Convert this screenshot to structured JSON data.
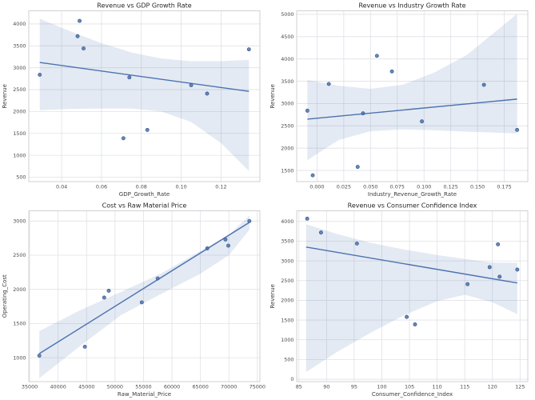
{
  "figure": {
    "background": "#ffffff",
    "grid_rows": 2,
    "grid_cols": 2
  },
  "style": {
    "accent": "#4c72b0",
    "point_fill": "#4c72b0",
    "point_edge": "#3a5a8c",
    "band_fill": "#4c72b0",
    "band_opacity": 0.15,
    "grid": "#e0e1e8",
    "spine": "#cccccc",
    "title_color": "#262626",
    "tick_color": "#4a4a4a",
    "label_color": "#3c3c3c"
  },
  "chart_data": [
    {
      "type": "scatter",
      "title": "Revenue vs GDP Growth Rate",
      "xlabel": "GDP_Growth_Rate",
      "ylabel": "Revenue",
      "xlim": [
        0.0235,
        0.1395
      ],
      "ylim": [
        400,
        4300
      ],
      "xticks": {
        "values": [
          0.04,
          0.06,
          0.08,
          0.1,
          0.12
        ],
        "labels": [
          "0.04",
          "0.06",
          "0.08",
          "0.10",
          "0.12"
        ]
      },
      "yticks": {
        "values": [
          500,
          1000,
          1500,
          2000,
          2500,
          3000,
          3500,
          4000
        ],
        "labels": [
          "500",
          "1000",
          "1500",
          "2000",
          "2500",
          "3000",
          "3500",
          "4000"
        ]
      },
      "points": [
        [
          0.029,
          2840
        ],
        [
          0.048,
          3720
        ],
        [
          0.049,
          4070
        ],
        [
          0.051,
          3440
        ],
        [
          0.071,
          1390
        ],
        [
          0.074,
          2780
        ],
        [
          0.083,
          1580
        ],
        [
          0.105,
          2600
        ],
        [
          0.113,
          2410
        ],
        [
          0.134,
          3420
        ]
      ],
      "regression": {
        "x": [
          0.029,
          0.134
        ],
        "y": [
          3120,
          2460
        ]
      },
      "band": {
        "x": [
          0.029,
          0.045,
          0.06,
          0.075,
          0.09,
          0.105,
          0.12,
          0.134
        ],
        "upper": [
          4120,
          3820,
          3560,
          3350,
          3210,
          3150,
          3150,
          3180
        ],
        "lower": [
          2030,
          2060,
          2070,
          2070,
          2000,
          1760,
          1280,
          640
        ]
      }
    },
    {
      "type": "scatter",
      "title": "Revenue vs Industry Growth Rate",
      "xlabel": "Industry_Revenue_Growth_Rate",
      "ylabel": "Revenue",
      "xlim": [
        -0.019,
        0.197
      ],
      "ylim": [
        1250,
        5080
      ],
      "xticks": {
        "values": [
          0.0,
          0.025,
          0.05,
          0.075,
          0.1,
          0.125,
          0.15,
          0.175
        ],
        "labels": [
          "0.000",
          "0.025",
          "0.050",
          "0.075",
          "0.100",
          "0.125",
          "0.150",
          "0.175"
        ]
      },
      "yticks": {
        "values": [
          1500,
          2000,
          2500,
          3000,
          3500,
          4000,
          4500,
          5000
        ],
        "labels": [
          "1500",
          "2000",
          "2500",
          "3000",
          "3500",
          "4000",
          "4500",
          "5000"
        ]
      },
      "points": [
        [
          -0.009,
          2840
        ],
        [
          -0.004,
          1390
        ],
        [
          0.011,
          3440
        ],
        [
          0.038,
          1580
        ],
        [
          0.043,
          2780
        ],
        [
          0.056,
          4070
        ],
        [
          0.07,
          3720
        ],
        [
          0.098,
          2600
        ],
        [
          0.156,
          3420
        ],
        [
          0.187,
          2410
        ]
      ],
      "regression": {
        "x": [
          -0.009,
          0.187
        ],
        "y": [
          2650,
          3100
        ]
      },
      "band": {
        "x": [
          -0.009,
          0.02,
          0.05,
          0.08,
          0.11,
          0.14,
          0.187
        ],
        "upper": [
          3530,
          3400,
          3330,
          3420,
          3700,
          4090,
          5010
        ],
        "lower": [
          1730,
          2180,
          2380,
          2420,
          2400,
          2370,
          2330
        ]
      }
    },
    {
      "type": "scatter",
      "title": "Cost vs Raw Material Price",
      "xlabel": "Raw_Material_Price",
      "ylabel": "Operating_Cost",
      "xlim": [
        34850,
        75450
      ],
      "ylim": [
        650,
        3150
      ],
      "xticks": {
        "values": [
          35000,
          40000,
          45000,
          50000,
          55000,
          60000,
          65000,
          70000,
          75000
        ],
        "labels": [
          "35000",
          "40000",
          "45000",
          "50000",
          "55000",
          "60000",
          "65000",
          "70000",
          "75000"
        ]
      },
      "yticks": {
        "values": [
          1000,
          1500,
          2000,
          2500,
          3000
        ],
        "labels": [
          "1000",
          "1500",
          "2000",
          "2500",
          "3000"
        ]
      },
      "points": [
        [
          36700,
          1030
        ],
        [
          44700,
          1160
        ],
        [
          48100,
          1880
        ],
        [
          48900,
          1980
        ],
        [
          54700,
          1810
        ],
        [
          57500,
          2160
        ],
        [
          66200,
          2600
        ],
        [
          69400,
          2730
        ],
        [
          69900,
          2640
        ],
        [
          73600,
          3000
        ]
      ],
      "regression": {
        "x": [
          36700,
          73600
        ],
        "y": [
          1060,
          2980
        ]
      },
      "band": {
        "x": [
          36700,
          44000,
          51000,
          58000,
          65000,
          70000,
          73600
        ],
        "upper": [
          1390,
          1700,
          1960,
          2230,
          2560,
          2800,
          3080
        ],
        "lower": [
          700,
          1180,
          1620,
          1930,
          2230,
          2500,
          2870
        ]
      }
    },
    {
      "type": "scatter",
      "title": "Revenue vs Consumer Confidence Index",
      "xlabel": "Consumer_Confidence_Index",
      "ylabel": "Revenue",
      "xlim": [
        84.6,
        126.4
      ],
      "ylim": [
        -60,
        4270
      ],
      "xticks": {
        "values": [
          85,
          90,
          95,
          100,
          105,
          110,
          115,
          120,
          125
        ],
        "labels": [
          "85",
          "90",
          "95",
          "100",
          "105",
          "110",
          "115",
          "120",
          "125"
        ]
      },
      "yticks": {
        "values": [
          0,
          500,
          1000,
          1500,
          2000,
          2500,
          3000,
          3500,
          4000
        ],
        "labels": [
          "0",
          "500",
          "1000",
          "1500",
          "2000",
          "2500",
          "3000",
          "3500",
          "4000"
        ]
      },
      "points": [
        [
          86.5,
          4070
        ],
        [
          89.0,
          3720
        ],
        [
          95.5,
          3440
        ],
        [
          104.5,
          1580
        ],
        [
          106.0,
          1390
        ],
        [
          115.5,
          2410
        ],
        [
          119.5,
          2840
        ],
        [
          121.0,
          3420
        ],
        [
          121.3,
          2600
        ],
        [
          124.5,
          2780
        ]
      ],
      "regression": {
        "x": [
          86.3,
          124.5
        ],
        "y": [
          3350,
          2440
        ]
      },
      "band": {
        "x": [
          86.3,
          92,
          98,
          104,
          110,
          115,
          120,
          124.5
        ],
        "upper": [
          3930,
          3680,
          3460,
          3290,
          3150,
          3050,
          2960,
          2950
        ],
        "lower": [
          180,
          700,
          1180,
          1620,
          1980,
          2140,
          1950,
          1650
        ]
      }
    }
  ]
}
